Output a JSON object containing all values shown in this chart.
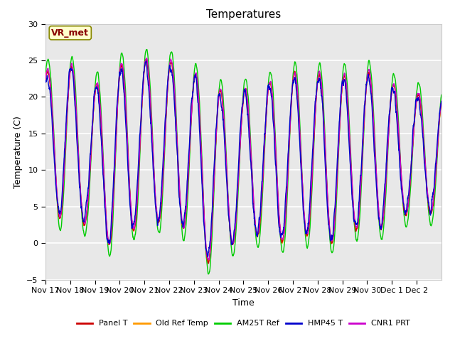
{
  "title": "Temperatures",
  "xlabel": "Time",
  "ylabel": "Temperature (C)",
  "ylim": [
    -5,
    30
  ],
  "xlim": [
    0,
    16
  ],
  "x_tick_labels": [
    "Nov 17",
    "Nov 18",
    "Nov 19",
    "Nov 20",
    "Nov 21",
    "Nov 22",
    "Nov 23",
    "Nov 24",
    "Nov 25",
    "Nov 26",
    "Nov 27",
    "Nov 28",
    "Nov 29",
    "Nov 30",
    "Dec 1",
    "Dec 2"
  ],
  "annotation_text": "VR_met",
  "annotation_bg": "#ffffcc",
  "annotation_border": "#888800",
  "annotation_text_color": "#880000",
  "colors": {
    "Panel T": "#cc0000",
    "Old Ref Temp": "#ff9900",
    "AM25T Ref": "#00cc00",
    "HMP45 T": "#0000cc",
    "CNR1 PRT": "#cc00cc"
  },
  "bg_color": "#e8e8e8",
  "grid_color": "#ffffff",
  "title_fontsize": 11,
  "label_fontsize": 9,
  "tick_fontsize": 8
}
